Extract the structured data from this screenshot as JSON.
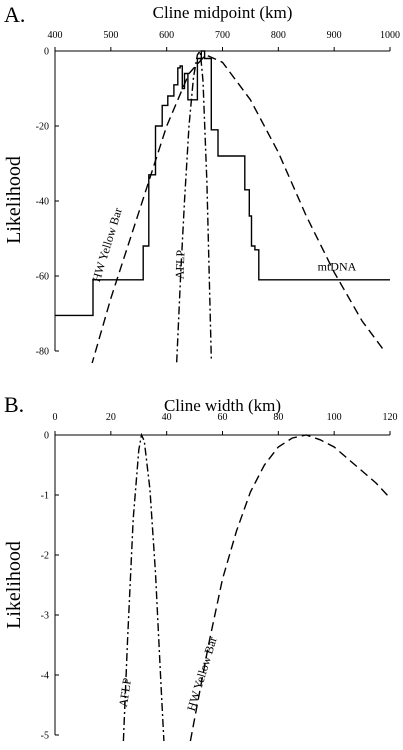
{
  "chart_data": [
    {
      "panel": "A.",
      "type": "line",
      "title": "Cline midpoint (km)",
      "ylabel": "Likelihood",
      "xlim": [
        400,
        1000
      ],
      "ylim": [
        -80,
        0
      ],
      "x_ticks": [
        400,
        500,
        600,
        700,
        800,
        900,
        1000
      ],
      "y_ticks": [
        0,
        -20,
        -40,
        -60,
        -80
      ],
      "series": [
        {
          "name": "HW Yellow Bar",
          "style": "dashed",
          "x": [
            465,
            500,
            550,
            600,
            640,
            670,
            700,
            750,
            800,
            850,
            900,
            950,
            990
          ],
          "y": [
            -84,
            -66,
            -43,
            -20,
            -6,
            -1,
            -3,
            -13,
            -27,
            -44,
            -59,
            -72,
            -80
          ]
        },
        {
          "name": "AFLP",
          "style": "dashdot",
          "x": [
            618,
            625,
            632,
            640,
            648,
            655,
            660,
            665,
            672,
            680
          ],
          "y": [
            -83,
            -60,
            -40,
            -20,
            -7,
            -1,
            0,
            -8,
            -35,
            -82
          ]
        },
        {
          "name": "mtDNA",
          "style": "step",
          "x": [
            400,
            468,
            468,
            558,
            558,
            568,
            568,
            580,
            580,
            592,
            592,
            602,
            602,
            613,
            613,
            620,
            620,
            624,
            624,
            628,
            628,
            632,
            632,
            638,
            638,
            655,
            655,
            662,
            662,
            668,
            668,
            680,
            680,
            692,
            692,
            740,
            740,
            748,
            748,
            752,
            752,
            758,
            758,
            765,
            765,
            768,
            768,
            1000
          ],
          "y": [
            -70.5,
            -70.5,
            -61,
            -61,
            -52,
            -52,
            -33,
            -33,
            -20,
            -20,
            -14.5,
            -14.5,
            -12,
            -12,
            -9,
            -9,
            -4.5,
            -4.5,
            -4,
            -4,
            -10,
            -10,
            -6,
            -6,
            -13,
            -13,
            -2,
            -2,
            0,
            0,
            -2,
            -2,
            -21,
            -21,
            -28,
            -28,
            -37,
            -37,
            -44,
            -44,
            -52,
            -52,
            -53,
            -53,
            -61,
            -61,
            -61,
            -61
          ]
        }
      ]
    },
    {
      "panel": "B.",
      "type": "line",
      "title": "Cline width (km)",
      "ylabel": "Likelihood",
      "xlim": [
        0,
        120
      ],
      "ylim": [
        -5,
        0
      ],
      "x_ticks": [
        0,
        20,
        40,
        60,
        80,
        100,
        120
      ],
      "y_ticks": [
        0,
        -1,
        -2,
        -3,
        -4,
        -5
      ],
      "series": [
        {
          "name": "AFLP",
          "style": "dashdot",
          "x": [
            24.5,
            26,
            28,
            30,
            31,
            32,
            34,
            36,
            38,
            39
          ],
          "y": [
            -5.1,
            -3.4,
            -1.4,
            -0.25,
            0,
            -0.1,
            -0.9,
            -2.3,
            -4.2,
            -5.1
          ]
        },
        {
          "name": "HW Yellow Bar",
          "style": "dashed",
          "x": [
            48.5,
            55,
            60,
            65,
            70,
            75,
            80,
            85,
            90,
            95,
            100,
            105,
            110,
            115,
            120
          ],
          "y": [
            -5.1,
            -3.5,
            -2.4,
            -1.6,
            -0.95,
            -0.5,
            -0.2,
            -0.05,
            0,
            -0.08,
            -0.2,
            -0.4,
            -0.6,
            -0.8,
            -1.05
          ]
        }
      ]
    }
  ]
}
